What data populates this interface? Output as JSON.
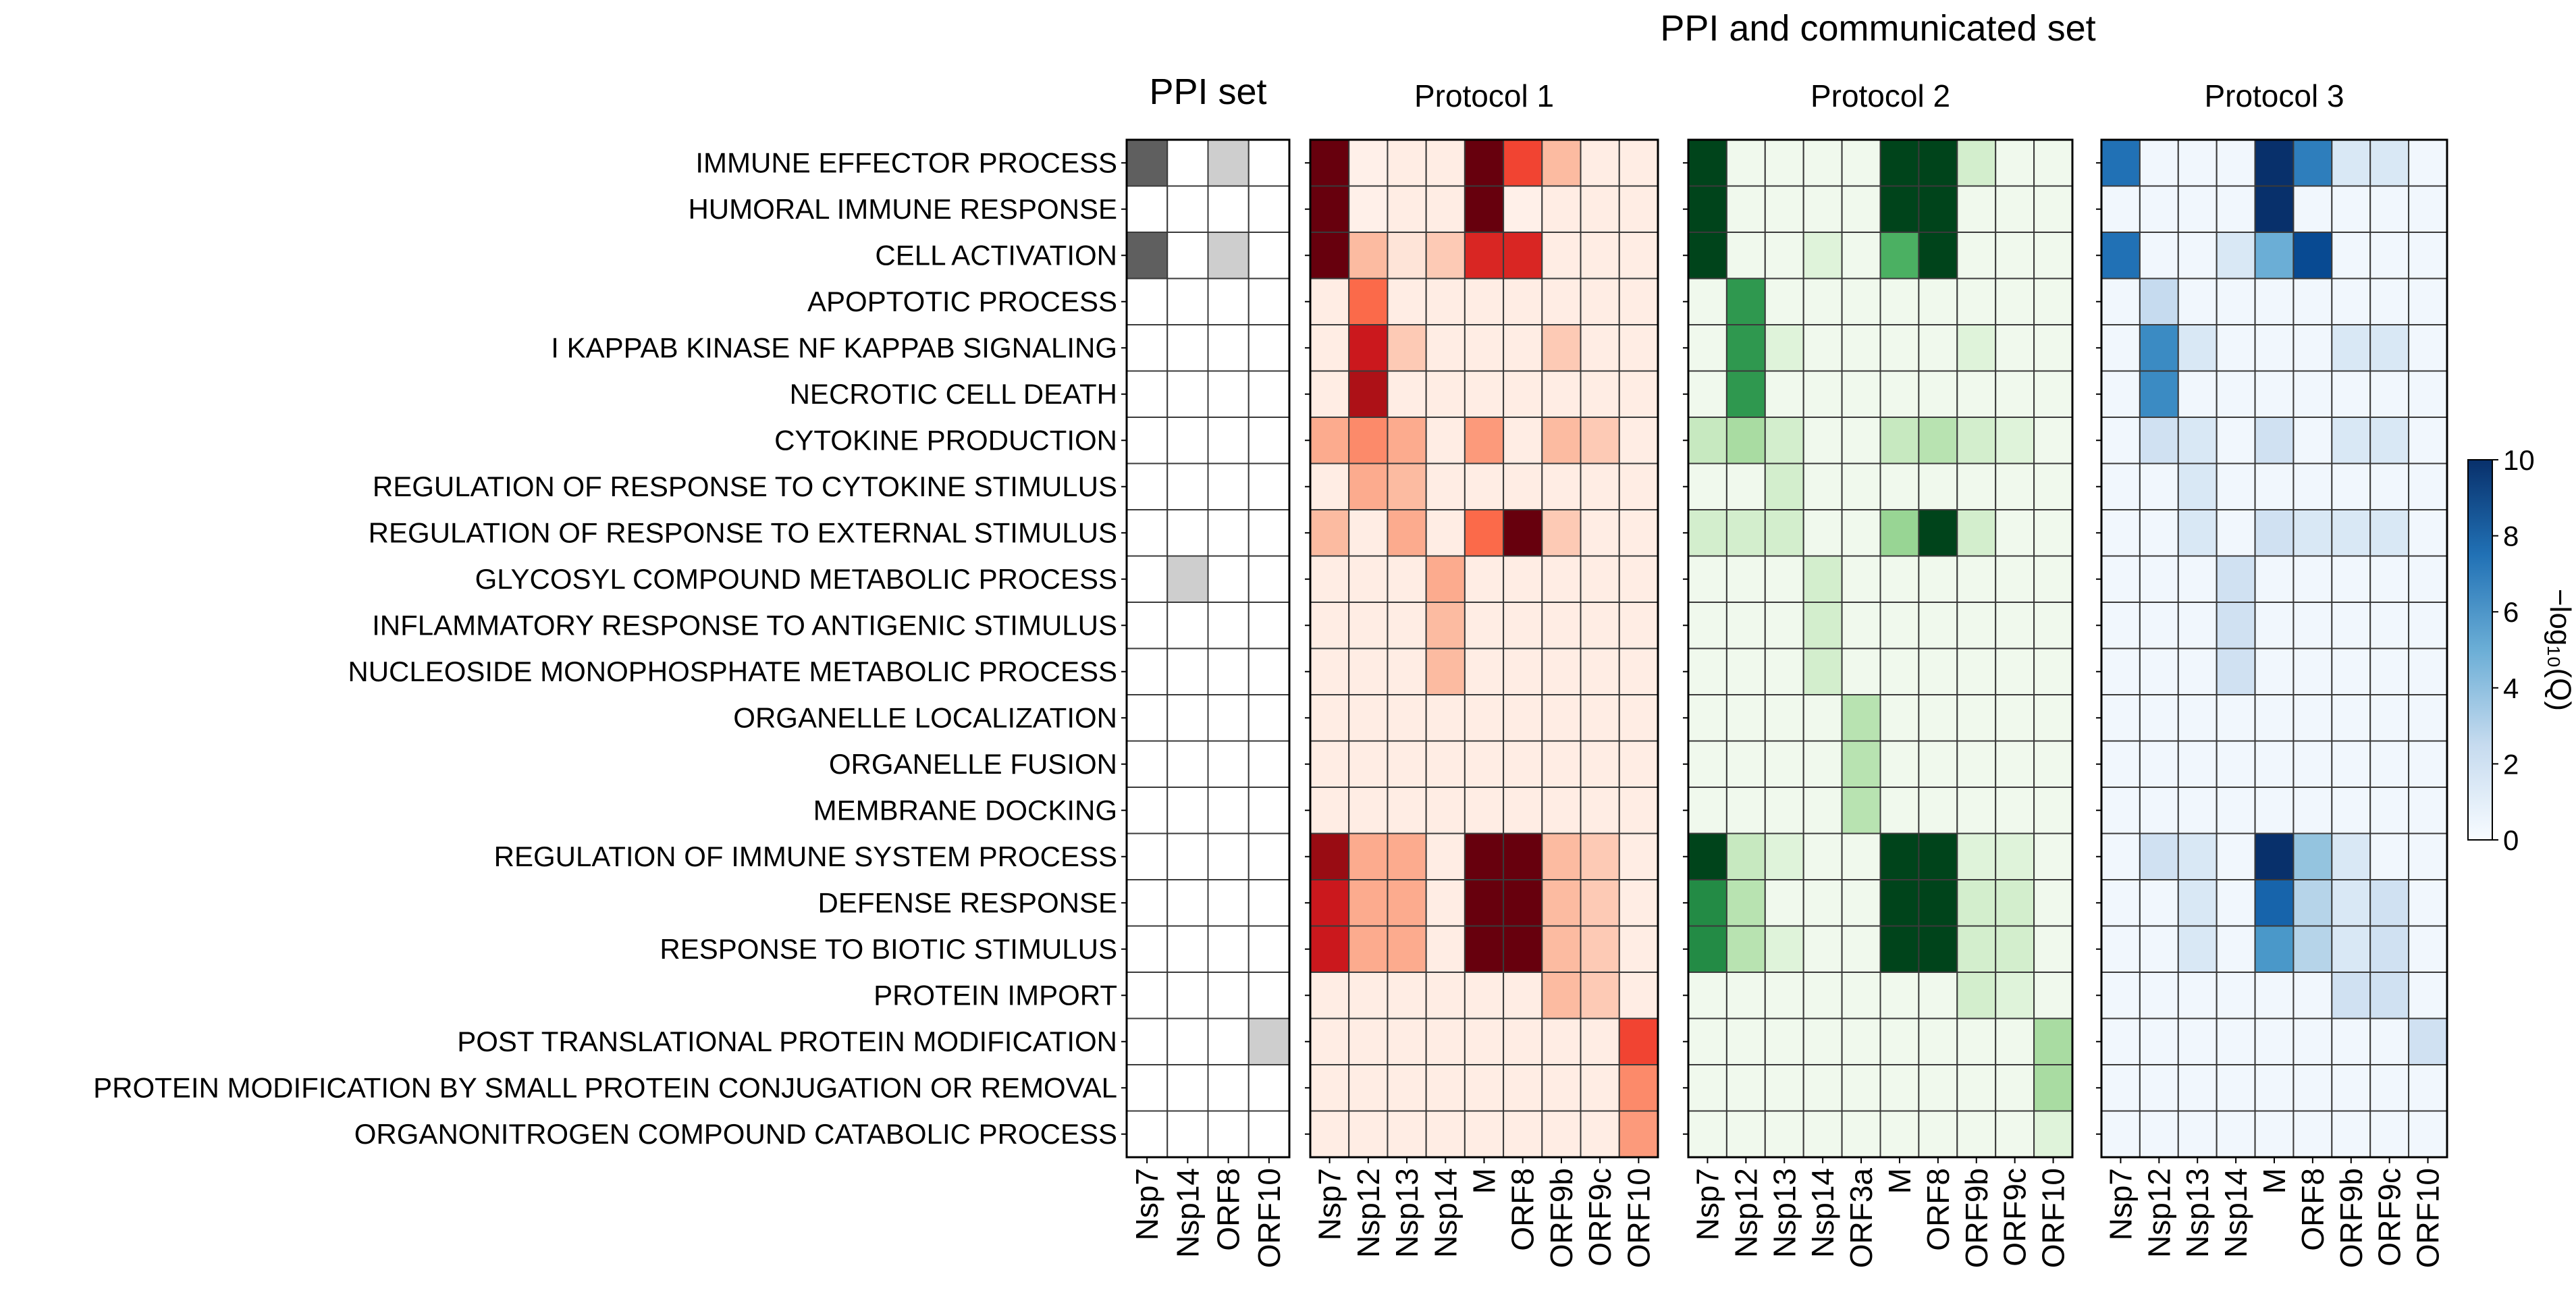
{
  "chart_data": {
    "type": "heatmap",
    "suptitle": "PPI and communicated set",
    "rows": [
      "IMMUNE EFFECTOR PROCESS",
      "HUMORAL IMMUNE RESPONSE",
      "CELL ACTIVATION",
      "APOPTOTIC PROCESS",
      "I KAPPAB KINASE NF KAPPAB SIGNALING",
      "NECROTIC CELL DEATH",
      "CYTOKINE PRODUCTION",
      "REGULATION OF RESPONSE TO CYTOKINE STIMULUS",
      "REGULATION OF RESPONSE TO EXTERNAL STIMULUS",
      "GLYCOSYL COMPOUND METABOLIC PROCESS",
      "INFLAMMATORY RESPONSE TO ANTIGENIC STIMULUS",
      "NUCLEOSIDE MONOPHOSPHATE METABOLIC PROCESS",
      "ORGANELLE LOCALIZATION",
      "ORGANELLE FUSION",
      "MEMBRANE DOCKING",
      "REGULATION OF IMMUNE SYSTEM PROCESS",
      "DEFENSE RESPONSE",
      "RESPONSE TO BIOTIC STIMULUS",
      "PROTEIN IMPORT",
      "POST TRANSLATIONAL PROTEIN MODIFICATION",
      "PROTEIN MODIFICATION BY SMALL PROTEIN CONJUGATION OR REMOVAL",
      "ORGANONITROGEN COMPOUND CATABOLIC PROCESS"
    ],
    "panels": [
      {
        "title": "PPI set",
        "colormap": "Greys",
        "columns": [
          "Nsp7",
          "Nsp14",
          "ORF8",
          "ORF10"
        ],
        "values": [
          [
            7,
            0,
            3,
            0
          ],
          [
            0,
            0,
            0,
            0
          ],
          [
            7,
            0,
            3,
            0
          ],
          [
            0,
            0,
            0,
            0
          ],
          [
            0,
            0,
            0,
            0
          ],
          [
            0,
            0,
            0,
            0
          ],
          [
            0,
            0,
            0,
            0
          ],
          [
            0,
            0,
            0,
            0
          ],
          [
            0,
            0,
            0,
            0
          ],
          [
            0,
            3,
            0,
            0
          ],
          [
            0,
            0,
            0,
            0
          ],
          [
            0,
            0,
            0,
            0
          ],
          [
            0,
            0,
            0,
            0
          ],
          [
            0,
            0,
            0,
            0
          ],
          [
            0,
            0,
            0,
            0
          ],
          [
            0,
            0,
            0,
            0
          ],
          [
            0,
            0,
            0,
            0
          ],
          [
            0,
            0,
            0,
            0
          ],
          [
            0,
            0,
            0,
            0
          ],
          [
            0,
            0,
            0,
            3
          ],
          [
            0,
            0,
            0,
            0
          ],
          [
            0,
            0,
            0,
            0
          ]
        ]
      },
      {
        "title": "Protocol 1",
        "colormap": "Reds",
        "columns": [
          "Nsp7",
          "Nsp12",
          "Nsp13",
          "Nsp14",
          "M",
          "ORF8",
          "ORF9b",
          "ORF9c",
          "ORF10"
        ],
        "values": [
          [
            10,
            0.3,
            0.5,
            0.5,
            10,
            6,
            2.5,
            0.5,
            0.5
          ],
          [
            10,
            0.3,
            0.5,
            0.5,
            10,
            0.3,
            0.5,
            0.5,
            0.5
          ],
          [
            10,
            2.5,
            1,
            2,
            7,
            7,
            0.5,
            0.5,
            0.5
          ],
          [
            0.5,
            5,
            0.5,
            0.5,
            0.5,
            0.5,
            0.5,
            0.5,
            0.5
          ],
          [
            0.5,
            7.5,
            2,
            0.5,
            0.5,
            0.5,
            2,
            0.5,
            0.5
          ],
          [
            0.5,
            8.5,
            0.5,
            0.5,
            0.5,
            0.5,
            0.5,
            0.5,
            0.5
          ],
          [
            3,
            4,
            3,
            0.5,
            3.5,
            0.5,
            2.5,
            2,
            0.5
          ],
          [
            0.5,
            3,
            2.5,
            0.5,
            0.5,
            0.5,
            0.5,
            0.5,
            0.5
          ],
          [
            2.5,
            0.5,
            3,
            0.5,
            5,
            10,
            2,
            0.5,
            0.5
          ],
          [
            0.5,
            0.5,
            0.5,
            3,
            0.5,
            0.5,
            0.5,
            0.5,
            0.5
          ],
          [
            0.5,
            0.5,
            0.5,
            2.5,
            0.5,
            0.5,
            0.5,
            0.5,
            0.5
          ],
          [
            0.5,
            0.5,
            0.5,
            2.5,
            0.5,
            0.5,
            0.5,
            0.5,
            0.5
          ],
          [
            0.5,
            0.5,
            0.5,
            0.5,
            0.5,
            0.5,
            0.5,
            0.5,
            0.5
          ],
          [
            0.5,
            0.5,
            0.5,
            0.5,
            0.5,
            0.5,
            0.5,
            0.5,
            0.5
          ],
          [
            0.5,
            0.5,
            0.5,
            0.5,
            0.5,
            0.5,
            0.5,
            0.5,
            0.5
          ],
          [
            9,
            3,
            3,
            0.5,
            10,
            10,
            2.5,
            2,
            0.5
          ],
          [
            7.5,
            3,
            3,
            0.5,
            10,
            10,
            2.5,
            2,
            0.5
          ],
          [
            7.5,
            3,
            3,
            0.5,
            10,
            10,
            2.5,
            2,
            0.5
          ],
          [
            0.5,
            0.5,
            0.5,
            0.5,
            0.5,
            0.5,
            2.5,
            2,
            0.5
          ],
          [
            0.5,
            0.5,
            0.5,
            0.5,
            0.5,
            0.5,
            0.5,
            0.5,
            6
          ],
          [
            0.5,
            0.5,
            0.5,
            0.5,
            0.5,
            0.5,
            0.5,
            0.5,
            4
          ],
          [
            0.5,
            0.5,
            0.5,
            0.5,
            0.5,
            0.5,
            0.5,
            0.5,
            3.5
          ]
        ]
      },
      {
        "title": "Protocol 2",
        "colormap": "Greens",
        "columns": [
          "Nsp7",
          "Nsp12",
          "Nsp13",
          "Nsp14",
          "ORF3a",
          "M",
          "ORF8",
          "ORF9b",
          "ORF9c",
          "ORF10"
        ],
        "values": [
          [
            10,
            0.5,
            0.5,
            0.5,
            0.5,
            10,
            10,
            2,
            0.5,
            0.5
          ],
          [
            10,
            0.5,
            0.5,
            0.5,
            0.5,
            10,
            10,
            0.5,
            0.5,
            0.5
          ],
          [
            10,
            0.5,
            0.5,
            1.5,
            0.5,
            6,
            10,
            0.5,
            0.5,
            0.5
          ],
          [
            0.5,
            7,
            0.5,
            0.5,
            0.5,
            0.5,
            0.5,
            0.5,
            0.5,
            0.5
          ],
          [
            0.5,
            7,
            1.5,
            0.5,
            0.5,
            0.5,
            0.5,
            1.5,
            0.5,
            0.5
          ],
          [
            0.5,
            7,
            0.5,
            0.5,
            0.5,
            0.5,
            0.5,
            0.5,
            0.5,
            0.5
          ],
          [
            2.5,
            3.5,
            2,
            0.5,
            0.5,
            2.5,
            3,
            2,
            1.5,
            0.5
          ],
          [
            0.5,
            0.5,
            2,
            0.5,
            0.5,
            0.5,
            0.5,
            0.5,
            0.5,
            0.5
          ],
          [
            2,
            2,
            2,
            0.5,
            0.5,
            4,
            10,
            2,
            0.5,
            0.5
          ],
          [
            0.5,
            0.5,
            0.5,
            2,
            0.5,
            0.5,
            0.5,
            0.5,
            0.5,
            0.5
          ],
          [
            0.5,
            0.5,
            0.5,
            2,
            0.5,
            0.5,
            0.5,
            0.5,
            0.5,
            0.5
          ],
          [
            0.5,
            0.5,
            0.5,
            2,
            0.5,
            0.5,
            0.5,
            0.5,
            0.5,
            0.5
          ],
          [
            0.5,
            0.5,
            0.5,
            0.5,
            3,
            0.5,
            0.5,
            0.5,
            0.5,
            0.5
          ],
          [
            0.5,
            0.5,
            0.5,
            0.5,
            3,
            0.5,
            0.5,
            0.5,
            0.5,
            0.5
          ],
          [
            0.5,
            0.5,
            0.5,
            0.5,
            3,
            0.5,
            0.5,
            0.5,
            0.5,
            0.5
          ],
          [
            10,
            2.5,
            1.5,
            0.5,
            0.5,
            10,
            10,
            1.5,
            1.5,
            0.5
          ],
          [
            7.5,
            3,
            0.5,
            0.5,
            0.5,
            10,
            10,
            2,
            2,
            0.5
          ],
          [
            7.5,
            3,
            1.5,
            0.5,
            0.5,
            10,
            10,
            2,
            2,
            0.5
          ],
          [
            0.5,
            0.5,
            0.5,
            0.5,
            0.5,
            0.5,
            0.5,
            2,
            1.5,
            0.5
          ],
          [
            0.5,
            0.5,
            0.5,
            0.5,
            0.5,
            0.5,
            0.5,
            0.5,
            0.5,
            3.5
          ],
          [
            0.5,
            0.5,
            0.5,
            0.5,
            0.5,
            0.5,
            0.5,
            0.5,
            0.5,
            3.5
          ],
          [
            0.5,
            0.5,
            0.5,
            0.5,
            0.5,
            0.5,
            0.5,
            0.5,
            0.5,
            1.5
          ]
        ]
      },
      {
        "title": "Protocol 3",
        "colormap": "Blues",
        "columns": [
          "Nsp7",
          "Nsp12",
          "Nsp13",
          "Nsp14",
          "M",
          "ORF8",
          "ORF9b",
          "ORF9c",
          "ORF10"
        ],
        "values": [
          [
            7.5,
            0.3,
            0.3,
            0.3,
            10,
            7,
            1.5,
            1.5,
            0.3
          ],
          [
            0.3,
            0.3,
            0.3,
            0.3,
            10,
            0.3,
            0.3,
            0.3,
            0.3
          ],
          [
            7.5,
            0.3,
            0.3,
            1.5,
            5,
            9,
            0.3,
            0.3,
            0.3
          ],
          [
            0.3,
            2.5,
            0.3,
            0.3,
            0.3,
            0.3,
            0.3,
            0.3,
            0.3
          ],
          [
            0.3,
            6.5,
            1.5,
            0.3,
            0.3,
            0.3,
            1.5,
            1.5,
            0.3
          ],
          [
            0.3,
            6.5,
            0.3,
            0.3,
            0.3,
            0.3,
            0.3,
            0.3,
            0.3
          ],
          [
            0.3,
            2,
            1.5,
            0.3,
            2,
            0.3,
            1.5,
            1.5,
            0.3
          ],
          [
            0.3,
            0.3,
            1.5,
            0.3,
            0.3,
            0.3,
            0.3,
            0.3,
            0.3
          ],
          [
            0.3,
            0.3,
            1.5,
            0.3,
            2,
            1.5,
            1.5,
            1.5,
            0.3
          ],
          [
            0.3,
            0.3,
            0.3,
            2,
            0.3,
            0.3,
            0.3,
            0.3,
            0.3
          ],
          [
            0.3,
            0.3,
            0.3,
            2,
            0.3,
            0.3,
            0.3,
            0.3,
            0.3
          ],
          [
            0.3,
            0.3,
            0.3,
            2,
            0.3,
            0.3,
            0.3,
            0.3,
            0.3
          ],
          [
            0.3,
            0.3,
            0.3,
            0.3,
            0.3,
            0.3,
            0.3,
            0.3,
            0.3
          ],
          [
            0.3,
            0.3,
            0.3,
            0.3,
            0.3,
            0.3,
            0.3,
            0.3,
            0.3
          ],
          [
            0.3,
            0.3,
            0.3,
            0.3,
            0.3,
            0.3,
            0.3,
            0.3,
            0.3
          ],
          [
            0.3,
            2,
            1.5,
            0.3,
            10,
            4,
            1.5,
            0.3,
            0.3
          ],
          [
            0.3,
            0.3,
            1.5,
            0.3,
            8,
            3,
            1.5,
            2,
            0.3
          ],
          [
            0.3,
            0.3,
            1.5,
            0.3,
            6,
            3,
            1.5,
            2,
            0.3
          ],
          [
            0.3,
            0.3,
            0.3,
            0.3,
            0.3,
            0.3,
            2,
            2,
            0.3
          ],
          [
            0.3,
            0.3,
            0.3,
            0.3,
            0.3,
            0.3,
            0.3,
            0.3,
            2
          ],
          [
            0.3,
            0.3,
            0.3,
            0.3,
            0.3,
            0.3,
            0.3,
            0.3,
            0.3
          ],
          [
            0.3,
            0.3,
            0.3,
            0.3,
            0.3,
            0.3,
            0.3,
            0.3,
            0.3
          ]
        ]
      }
    ],
    "colorbar": {
      "label": "−log₁₀(Q)",
      "ticks": [
        "0",
        "2",
        "4",
        "6",
        "8",
        "10"
      ],
      "range": [
        0,
        10
      ],
      "colormap": "Blues"
    }
  }
}
